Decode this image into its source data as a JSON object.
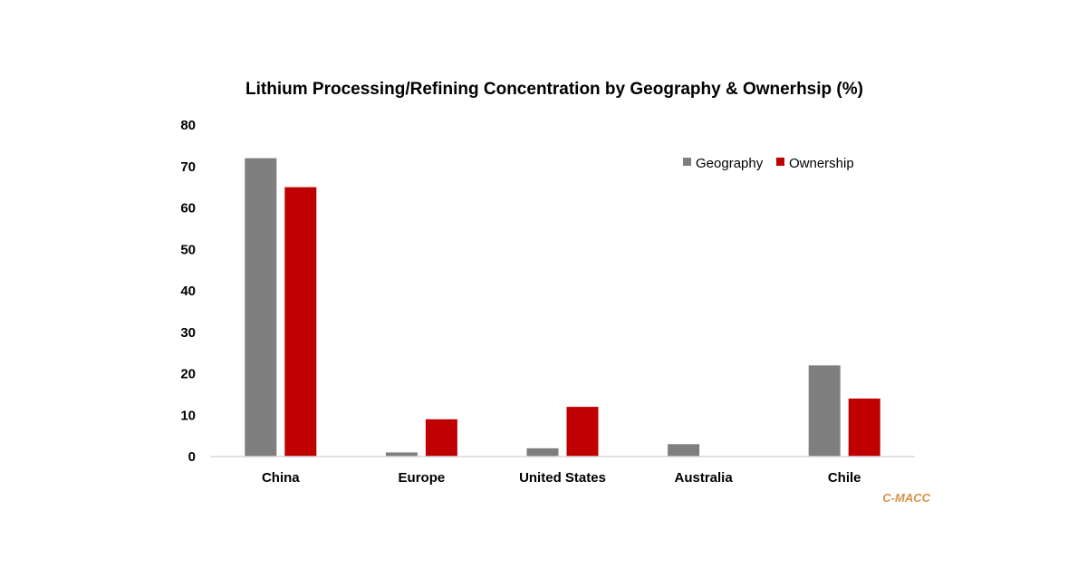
{
  "chart_data": {
    "type": "bar",
    "title": "Lithium Processing/Refining Concentration by Geography & Ownerhsip (%)",
    "categories": [
      "China",
      "Europe",
      "United States",
      "Australia",
      "Chile"
    ],
    "series": [
      {
        "name": "Geography",
        "values": [
          72,
          1,
          2,
          3,
          22
        ],
        "color": "#7f7f7f"
      },
      {
        "name": "Ownership",
        "values": [
          65,
          9,
          12,
          0,
          14
        ],
        "color": "#c00000"
      }
    ],
    "ylim": [
      0,
      80
    ],
    "yticks": [
      0,
      10,
      20,
      30,
      40,
      50,
      60,
      70,
      80
    ],
    "grid": false,
    "legend_position": "top-right",
    "xlabel": "",
    "ylabel": ""
  },
  "source": {
    "text": "C-MACC",
    "color": "#d4954a"
  },
  "axis_color": "#d9d9d9"
}
